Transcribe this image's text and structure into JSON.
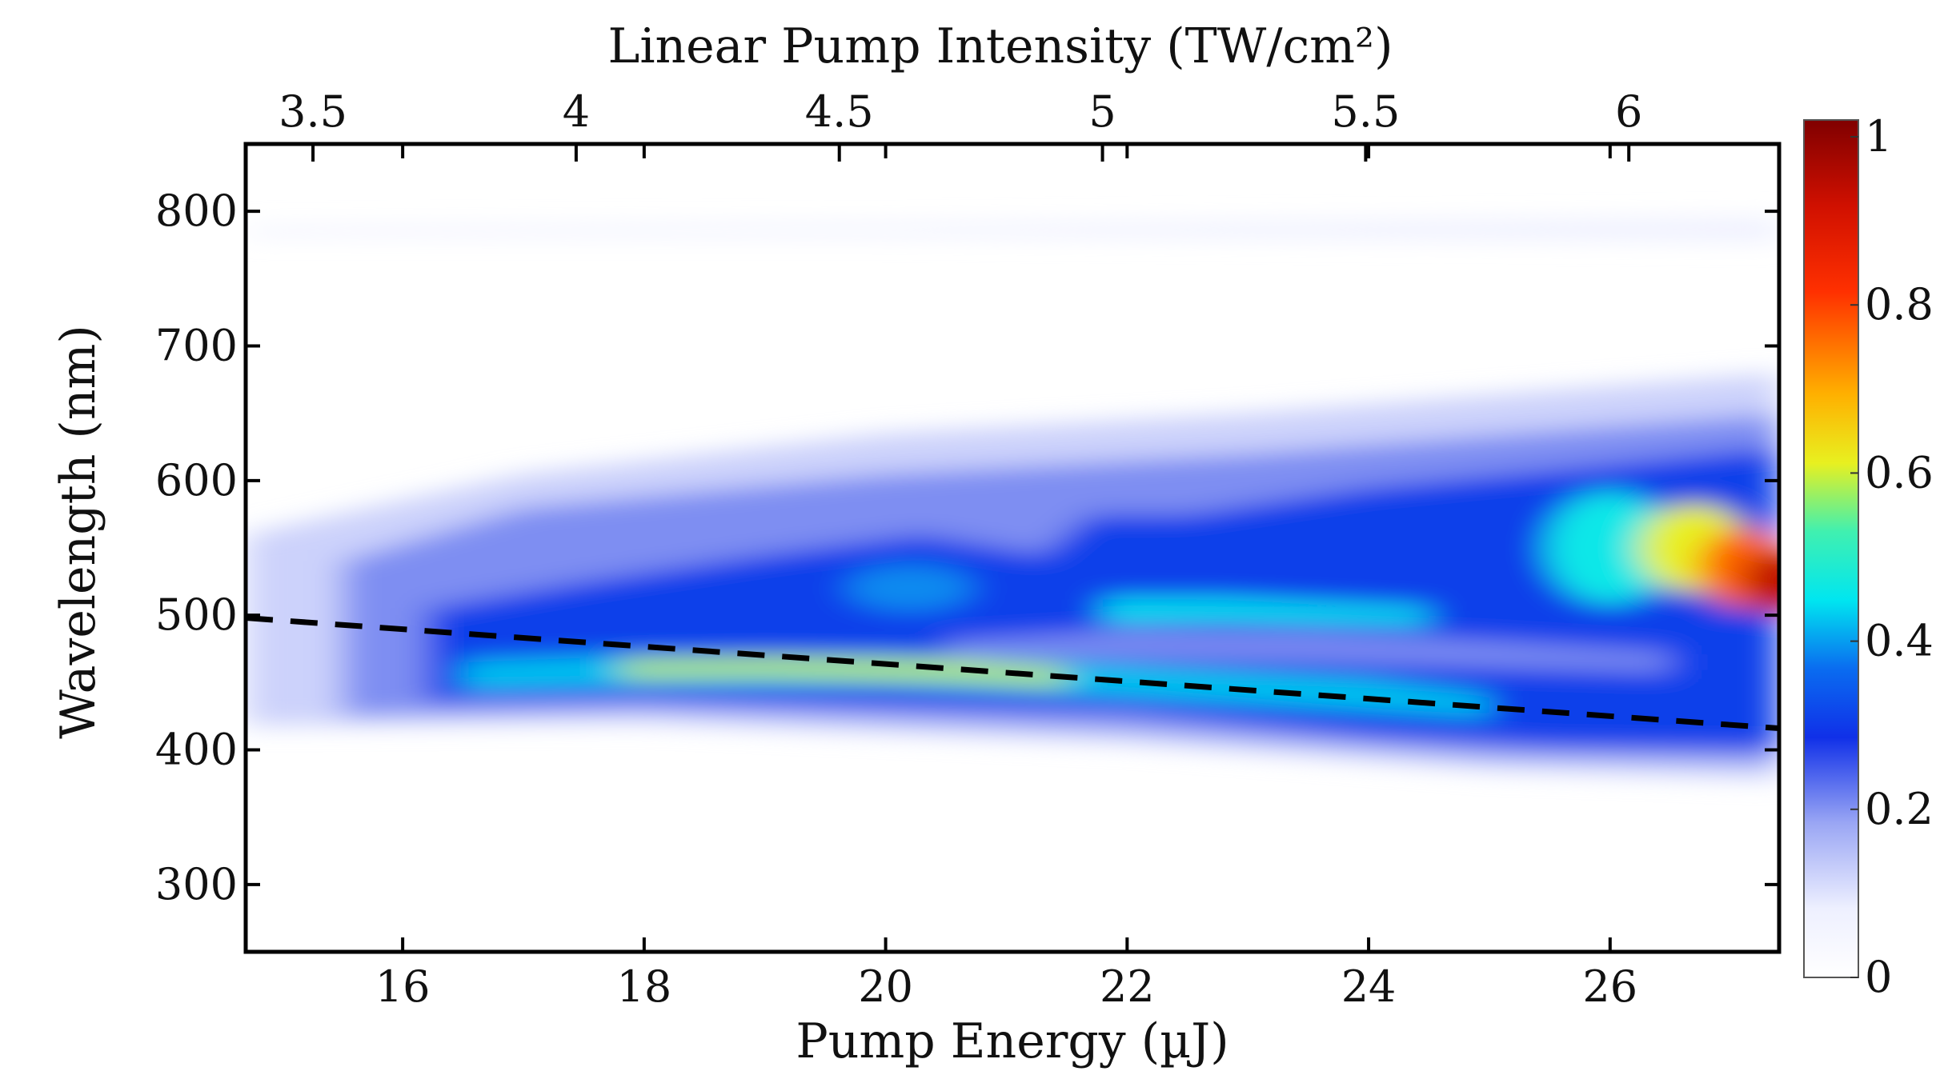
{
  "chart_data": {
    "type": "heatmap",
    "title": "",
    "xlabel": "Pump Energy (µJ)",
    "ylabel": "Wavelength (nm)",
    "x2label": "Linear Pump Intensity (TW/cm²)",
    "xlim": [
      14.7,
      27.4
    ],
    "ylim": [
      250,
      850
    ],
    "xticks": [
      16,
      18,
      20,
      22,
      24,
      26
    ],
    "xtick_labels": [
      "16",
      "18",
      "20",
      "22",
      "24",
      "26"
    ],
    "yticks": [
      300,
      400,
      500,
      600,
      700,
      800
    ],
    "ytick_labels": [
      "300",
      "400",
      "500",
      "600",
      "700",
      "800"
    ],
    "x2ticks": [
      3.5,
      4,
      4.5,
      5,
      5.5,
      6
    ],
    "x2tick_labels": [
      "3.5",
      "4",
      "4.5",
      "5",
      "5.5",
      "6"
    ],
    "x2_per_x": 0.2294,
    "colorbar": {
      "ticks": [
        0,
        0.2,
        0.4,
        0.6,
        0.8,
        1
      ],
      "tick_labels": [
        "0",
        "0.2",
        "0.4",
        "0.6",
        "0.8",
        "1"
      ],
      "range": [
        0,
        1.02
      ],
      "colormap": "white-blue-cyan-yellow-red-darkred"
    },
    "dashed_line": {
      "x": [
        14.7,
        27.4
      ],
      "y": [
        498,
        416
      ],
      "color": "#000000"
    },
    "features": [
      {
        "name": "main-band-lower",
        "points": [
          [
            14.7,
            440,
            0.1
          ],
          [
            16.5,
            445,
            0.3
          ],
          [
            17.5,
            452,
            0.5
          ],
          [
            18.5,
            458,
            0.55
          ],
          [
            20,
            458,
            0.6
          ],
          [
            21,
            455,
            0.55
          ],
          [
            22,
            448,
            0.45
          ],
          [
            23,
            445,
            0.45
          ],
          [
            24,
            437,
            0.35
          ],
          [
            25,
            428,
            0.3
          ],
          [
            26,
            425,
            0.3
          ],
          [
            27.4,
            420,
            0.3
          ]
        ]
      },
      {
        "name": "main-band-upper",
        "points": [
          [
            14.7,
            500,
            0.05
          ],
          [
            16,
            505,
            0.2
          ],
          [
            17.5,
            505,
            0.3
          ],
          [
            19,
            520,
            0.35
          ],
          [
            20,
            530,
            0.3
          ],
          [
            21,
            520,
            0.25
          ],
          [
            22,
            520,
            0.3
          ],
          [
            22.5,
            505,
            0.45
          ],
          [
            23.5,
            500,
            0.45
          ],
          [
            24.5,
            520,
            0.35
          ],
          [
            25.5,
            530,
            0.4
          ],
          [
            26.5,
            545,
            0.55
          ],
          [
            27.4,
            530,
            0.9
          ]
        ]
      },
      {
        "name": "emission-780nm",
        "points": [
          [
            14.7,
            785,
            0.02
          ],
          [
            18,
            785,
            0.04
          ],
          [
            22,
            785,
            0.06
          ],
          [
            27.4,
            785,
            0.1
          ]
        ]
      }
    ]
  }
}
